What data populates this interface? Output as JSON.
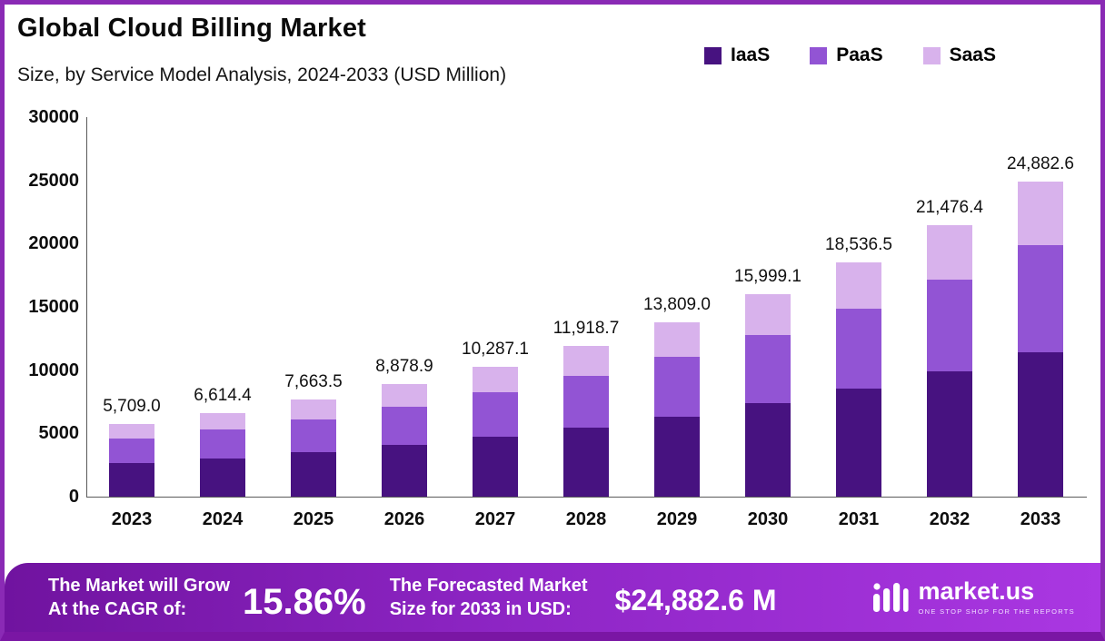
{
  "header": {
    "title": "Global Cloud Billing Market",
    "subtitle": "Size, by Service Model Analysis, 2024-2033 (USD Million)"
  },
  "legend": [
    {
      "label": "IaaS",
      "color": "#471280"
    },
    {
      "label": "PaaS",
      "color": "#9254d4"
    },
    {
      "label": "SaaS",
      "color": "#d8b2ec"
    }
  ],
  "chart_data": {
    "type": "bar",
    "stacked": true,
    "title": "Global Cloud Billing Market Size, by Service Model Analysis, 2024-2033 (USD Million)",
    "xlabel": "",
    "ylabel": "",
    "ylim": [
      0,
      30000
    ],
    "grid": false,
    "legend_position": "top-right",
    "categories": [
      "2023",
      "2024",
      "2025",
      "2026",
      "2027",
      "2028",
      "2029",
      "2030",
      "2031",
      "2032",
      "2033"
    ],
    "series": [
      {
        "name": "IaaS",
        "color": "#471280",
        "values": [
          2626,
          3043,
          3525,
          4084,
          4732,
          5483,
          6352,
          7360,
          8527,
          9879,
          11446
        ]
      },
      {
        "name": "PaaS",
        "color": "#9254d4",
        "values": [
          1941,
          2249,
          2606,
          3019,
          3498,
          4052,
          4695,
          5440,
          6302,
          7302,
          8460
        ]
      },
      {
        "name": "SaaS",
        "color": "#d8b2ec",
        "values": [
          1142,
          1322,
          1533,
          1776,
          2057,
          2384,
          2762,
          3199,
          3708,
          4295,
          4977
        ]
      }
    ],
    "totals": [
      5709.0,
      6614.4,
      7663.5,
      8878.9,
      10287.1,
      11918.7,
      13809.0,
      15999.1,
      18536.5,
      21476.4,
      24882.6
    ],
    "total_labels": [
      "5,709.0",
      "6,614.4",
      "7,663.5",
      "8,878.9",
      "10,287.1",
      "11,918.7",
      "13,809.0",
      "15,999.1",
      "18,536.5",
      "21,476.4",
      "24,882.6"
    ],
    "yticks": [
      {
        "v": 0,
        "label": "0"
      },
      {
        "v": 5000,
        "label": "5000"
      },
      {
        "v": 10000,
        "label": "10000"
      },
      {
        "v": 15000,
        "label": "15000"
      },
      {
        "v": 20000,
        "label": "20000"
      },
      {
        "v": 25000,
        "label": "25000"
      },
      {
        "v": 30000,
        "label": "30000"
      }
    ]
  },
  "footer": {
    "cagr_label_line1": "The Market will Grow",
    "cagr_label_line2": "At the CAGR of:",
    "cagr_value": "15.86%",
    "forecast_label_line1": "The Forecasted Market",
    "forecast_label_line2": "Size for 2033 in USD:",
    "forecast_value": "$24,882.6 M",
    "brand": "market.us",
    "brand_tagline": "ONE STOP SHOP FOR THE REPORTS"
  },
  "colors": {
    "frame_border": "#8a2ab5",
    "footer_gradient_start": "#70139f",
    "footer_gradient_end": "#aa37e2",
    "iaas": "#471280",
    "paas": "#9254d4",
    "saas": "#d8b2ec"
  }
}
